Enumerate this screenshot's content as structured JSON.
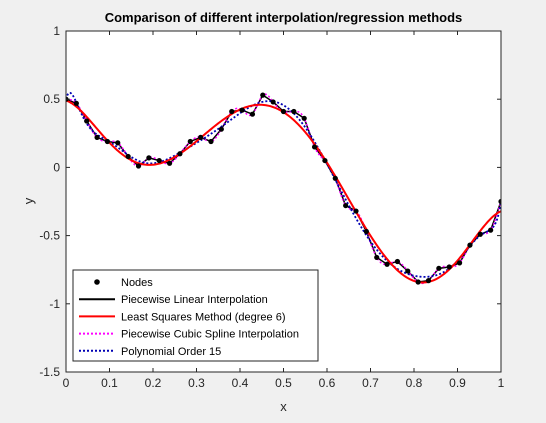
{
  "chart_data": {
    "type": "line",
    "title": "Comparison of different interpolation/regression methods",
    "xlabel": "x",
    "ylabel": "y",
    "xlim": [
      0,
      1
    ],
    "ylim": [
      -1.5,
      1
    ],
    "xticks": [
      0,
      0.1,
      0.2,
      0.3,
      0.4,
      0.5,
      0.6,
      0.7,
      0.8,
      0.9,
      1
    ],
    "yticks": [
      -1.5,
      -1,
      -0.5,
      0,
      0.5,
      1
    ],
    "xtick_labels": [
      "0",
      "0.1",
      "0.2",
      "0.3",
      "0.4",
      "0.5",
      "0.6",
      "0.7",
      "0.8",
      "0.9",
      "1"
    ],
    "ytick_labels": [
      "-1.5",
      "-1",
      "-0.5",
      "0",
      "0.5",
      "1"
    ],
    "grid": false,
    "legend_position": "bottom-left",
    "nodes": {
      "name": "Nodes",
      "color": "#000000",
      "x": [
        0,
        0.0238,
        0.0476,
        0.0714,
        0.0952,
        0.119,
        0.1429,
        0.1667,
        0.1905,
        0.2143,
        0.2381,
        0.2619,
        0.2857,
        0.3095,
        0.3333,
        0.3571,
        0.381,
        0.4048,
        0.4286,
        0.4524,
        0.4762,
        0.5,
        0.5238,
        0.5476,
        0.5714,
        0.5952,
        0.619,
        0.6429,
        0.6667,
        0.6905,
        0.7143,
        0.7381,
        0.7619,
        0.7857,
        0.8095,
        0.8333,
        0.8571,
        0.881,
        0.9048,
        0.9286,
        0.9524,
        0.9762,
        1
      ],
      "y": [
        0.5,
        0.47,
        0.34,
        0.22,
        0.19,
        0.18,
        0.08,
        0.01,
        0.07,
        0.05,
        0.03,
        0.1,
        0.19,
        0.22,
        0.19,
        0.28,
        0.41,
        0.42,
        0.39,
        0.53,
        0.48,
        0.41,
        0.41,
        0.36,
        0.15,
        0.05,
        -0.08,
        -0.28,
        -0.32,
        -0.47,
        -0.66,
        -0.71,
        -0.69,
        -0.76,
        -0.84,
        -0.83,
        -0.74,
        -0.73,
        -0.7,
        -0.57,
        -0.49,
        -0.46,
        -0.25
      ]
    },
    "series": [
      {
        "name": "Piecewise Linear Interpolation",
        "color": "#000000",
        "style": "solid"
      },
      {
        "name": "Least Squares Method (degree 6)",
        "color": "#ff0000",
        "style": "solid",
        "degree": 6
      },
      {
        "name": "Piecewise Cubic Spline Interpolation",
        "color": "#ff00ff",
        "style": "dotted"
      },
      {
        "name": "Polynomial Order 15",
        "color": "#0000b4",
        "style": "dotted",
        "degree": 15
      }
    ]
  }
}
